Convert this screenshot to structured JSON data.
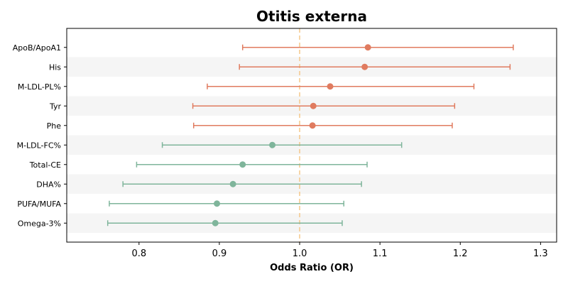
{
  "chart_data": {
    "type": "forest",
    "title": "Otitis externa",
    "xlabel": "Odds Ratio (OR)",
    "xlim": [
      0.71,
      1.32
    ],
    "x_ticks": [
      0.8,
      0.9,
      1.0,
      1.1,
      1.2,
      1.3
    ],
    "x_tick_labels": [
      "0.8",
      "0.9",
      "1.0",
      "1.1",
      "1.2",
      "1.3"
    ],
    "reference_line": 1.0,
    "reference_line_color": "#f5c88a",
    "colors": {
      "increase": "#e07b5f",
      "decrease": "#7fb59b",
      "band": "#f5f5f5"
    },
    "grid": false,
    "rows": [
      {
        "label": "ApoB/ApoA1",
        "or": 1.085,
        "lower": 0.929,
        "upper": 1.266,
        "group": "increase"
      },
      {
        "label": "His",
        "or": 1.081,
        "lower": 0.925,
        "upper": 1.262,
        "group": "increase"
      },
      {
        "label": "M-LDL-PL%",
        "or": 1.038,
        "lower": 0.885,
        "upper": 1.217,
        "group": "increase"
      },
      {
        "label": "Tyr",
        "or": 1.017,
        "lower": 0.867,
        "upper": 1.193,
        "group": "increase"
      },
      {
        "label": "Phe",
        "or": 1.016,
        "lower": 0.868,
        "upper": 1.19,
        "group": "increase"
      },
      {
        "label": "M-LDL-FC%",
        "or": 0.966,
        "lower": 0.829,
        "upper": 1.127,
        "group": "decrease"
      },
      {
        "label": "Total-CE",
        "or": 0.929,
        "lower": 0.797,
        "upper": 1.084,
        "group": "decrease"
      },
      {
        "label": "DHA%",
        "or": 0.917,
        "lower": 0.78,
        "upper": 1.077,
        "group": "decrease"
      },
      {
        "label": "PUFA/MUFA",
        "or": 0.897,
        "lower": 0.763,
        "upper": 1.055,
        "group": "decrease"
      },
      {
        "label": "Omega-3%",
        "or": 0.895,
        "lower": 0.761,
        "upper": 1.053,
        "group": "decrease"
      }
    ]
  }
}
